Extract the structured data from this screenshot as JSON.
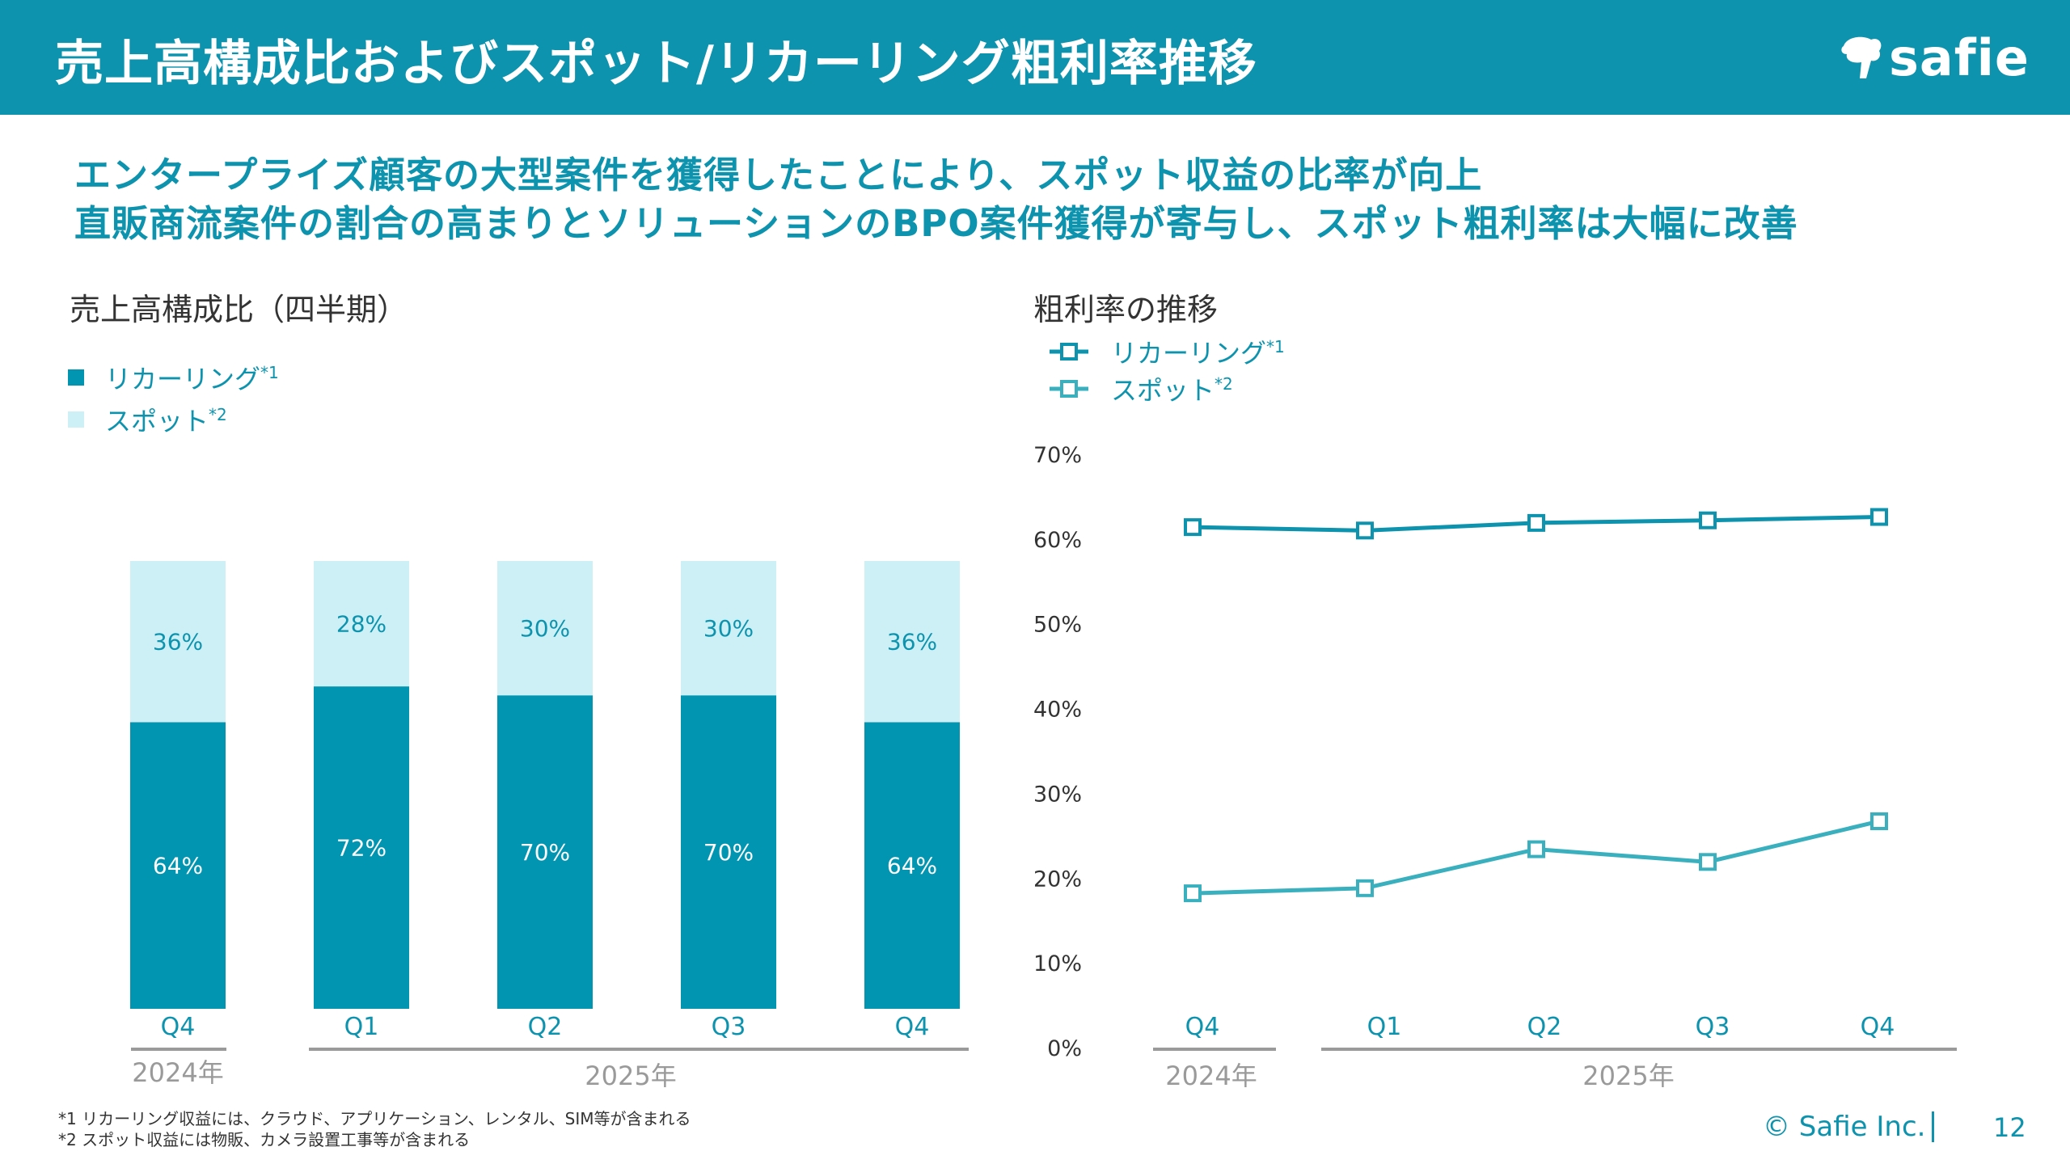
{
  "header": {
    "title": "売上高構成比およびスポット/リカーリング粗利率推移",
    "logo_text": "safie"
  },
  "subtitle": {
    "line1": "エンタープライズ顧客の大型案件を獲得したことにより、スポット収益の比率が向上",
    "line2": "直販商流案件の割合の高まりとソリューションのBPO案件獲得が寄与し、スポット粗利率は大幅に改善"
  },
  "left_section": {
    "title": "売上高構成比（四半期）",
    "legend": [
      {
        "label": "リカーリング",
        "sup": "*1"
      },
      {
        "label": "スポット",
        "sup": "*2"
      }
    ]
  },
  "right_section": {
    "title": "粗利率の推移",
    "legend": [
      {
        "label": "リカーリング",
        "sup": "*1"
      },
      {
        "label": "スポット",
        "sup": "*2"
      }
    ]
  },
  "colors": {
    "primary": "#0d93ad",
    "recurring_bar": "#0195b1",
    "spot_bar": "#ccf0f6",
    "spot_line": "#3ab0bf",
    "axis_text": "#333333",
    "group_line": "#9a9a9a"
  },
  "chart_data": [
    {
      "type": "bar",
      "stacked": true,
      "title": "売上高構成比（四半期）",
      "categories": [
        "Q4",
        "Q1",
        "Q2",
        "Q3",
        "Q4"
      ],
      "year_groups": [
        {
          "label": "2024年",
          "count": 1
        },
        {
          "label": "2025年",
          "count": 4
        }
      ],
      "series": [
        {
          "name": "リカーリング",
          "values": [
            64,
            72,
            70,
            70,
            64
          ],
          "labels": [
            "64%",
            "72%",
            "70%",
            "70%",
            "64%"
          ]
        },
        {
          "name": "スポット",
          "values": [
            36,
            28,
            30,
            30,
            36
          ],
          "labels": [
            "36%",
            "28%",
            "30%",
            "30%",
            "36%"
          ]
        }
      ],
      "ylim": [
        0,
        100
      ]
    },
    {
      "type": "line",
      "title": "粗利率の推移",
      "categories": [
        "Q4",
        "Q1",
        "Q2",
        "Q3",
        "Q4"
      ],
      "year_groups": [
        {
          "label": "2024年",
          "count": 1
        },
        {
          "label": "2025年",
          "count": 4
        }
      ],
      "series": [
        {
          "name": "リカーリング",
          "values": [
            61.5,
            61.1,
            62.0,
            62.3,
            62.7
          ]
        },
        {
          "name": "スポット",
          "values": [
            18.3,
            18.9,
            23.5,
            22.0,
            26.8
          ]
        }
      ],
      "ylim": [
        0,
        70
      ],
      "yticks": [
        "0%",
        "10%",
        "20%",
        "30%",
        "40%",
        "50%",
        "60%",
        "70%"
      ]
    }
  ],
  "footnotes": [
    "*1 リカーリング収益には、クラウド、アプリケーション、レンタル、SIM等が含まれる",
    "*2 スポット収益には物販、カメラ設置工事等が含まれる"
  ],
  "footer": {
    "copyright": "© Safie Inc.",
    "page_number": "12"
  }
}
